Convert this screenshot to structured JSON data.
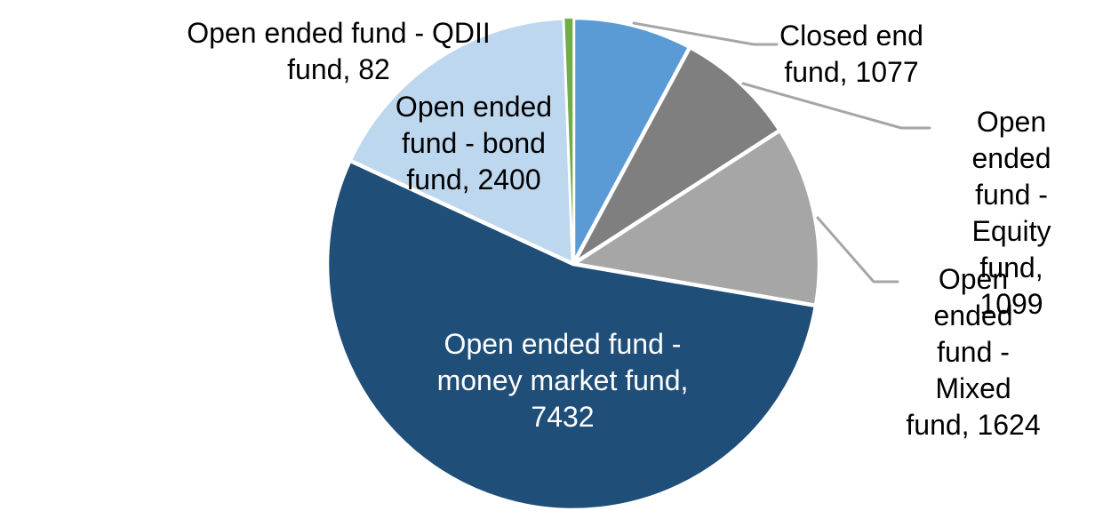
{
  "chart_data": {
    "type": "pie",
    "title": "",
    "legend_position": "none",
    "direction": "clockwise",
    "start_angle_deg": 0,
    "categories": [
      "Closed end fund",
      "Open ended fund - Equity fund",
      "Open ended fund - Mixed fund",
      "Open ended fund - money market fund",
      "Open ended fund - bond fund",
      "Open ended fund - QDII fund"
    ],
    "values": [
      1077,
      1099,
      1624,
      7432,
      2400,
      82
    ],
    "slices": [
      {
        "id": "closed-end-fund",
        "category": "Closed end fund",
        "value": 1077,
        "color": "#5B9BD5",
        "label_text": "Closed end\nfund, 1077",
        "label_placement": "outside",
        "label_color": "#000000",
        "leader_line": true
      },
      {
        "id": "equity-fund",
        "category": "Open ended fund - Equity fund",
        "value": 1099,
        "color": "#7F7F7F",
        "label_text": "Open ended\nfund - Equity\nfund, 1099",
        "label_placement": "outside",
        "label_color": "#000000",
        "leader_line": true
      },
      {
        "id": "mixed-fund",
        "category": "Open ended fund - Mixed fund",
        "value": 1624,
        "color": "#A6A6A6",
        "label_text": "Open ended\nfund - Mixed\nfund, 1624",
        "label_placement": "outside",
        "label_color": "#000000",
        "leader_line": true
      },
      {
        "id": "money-market-fund",
        "category": "Open ended fund - money market fund",
        "value": 7432,
        "color": "#1F4E79",
        "label_text": "Open ended fund -\nmoney market fund,\n7432",
        "label_placement": "inside",
        "label_color": "#FFFFFF",
        "leader_line": false
      },
      {
        "id": "bond-fund",
        "category": "Open ended fund - bond fund",
        "value": 2400,
        "color": "#BDD7EE",
        "label_text": "Open ended\nfund - bond\nfund, 2400",
        "label_placement": "outside",
        "label_color": "#000000",
        "leader_line": false
      },
      {
        "id": "qdii-fund",
        "category": "Open ended fund - QDII fund",
        "value": 82,
        "color": "#70AD47",
        "label_text": "Open ended fund - QDII\nfund, 82",
        "label_placement": "outside",
        "label_color": "#000000",
        "leader_line": false
      }
    ],
    "slice_border_color": "#FFFFFF",
    "leader_line_color": "#A6A6A6",
    "background_color": "#FFFFFF"
  }
}
